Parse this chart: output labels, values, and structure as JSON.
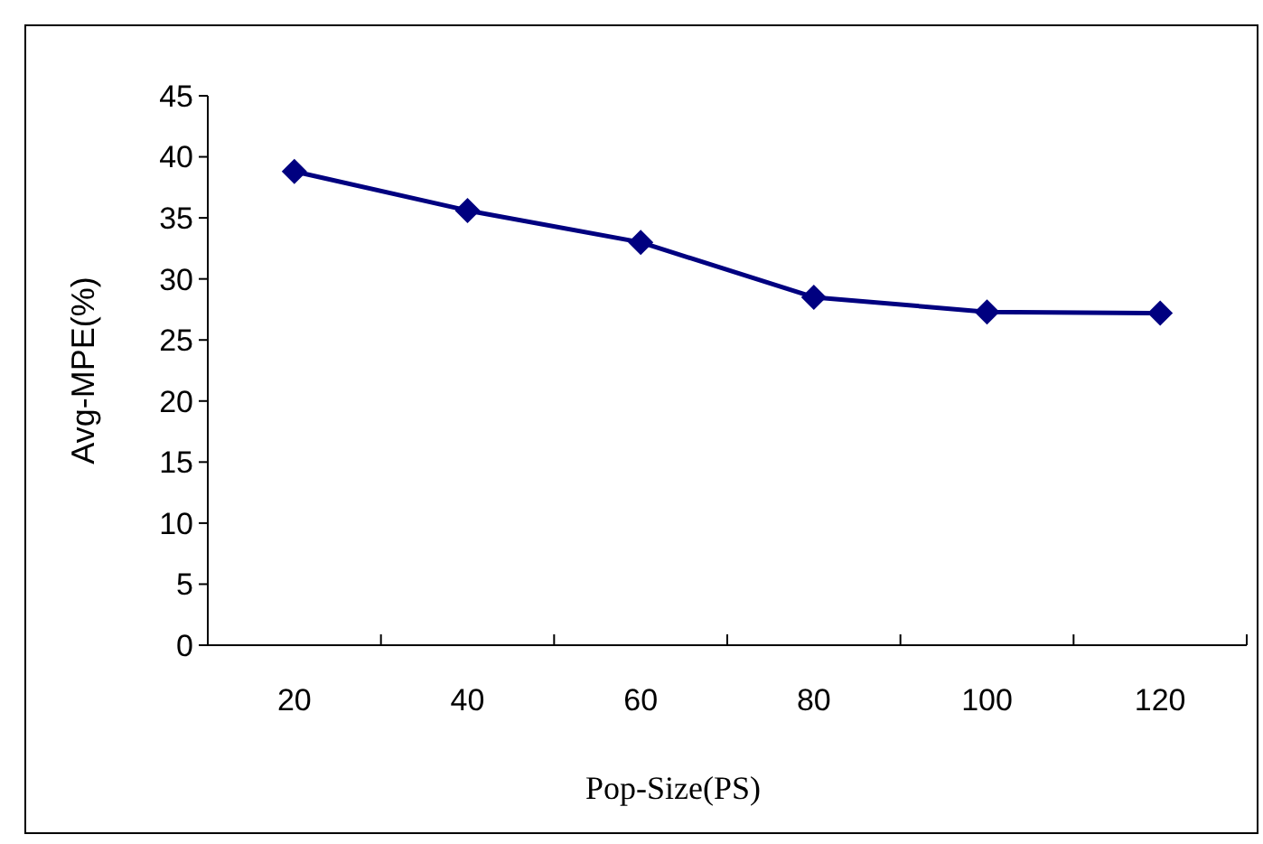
{
  "chart_data": {
    "type": "line",
    "xlabel": "Pop-Size(PS)",
    "ylabel": "Avg-MPE(%)",
    "categories": [
      "20",
      "40",
      "60",
      "80",
      "100",
      "120"
    ],
    "series": [
      {
        "color": "#000080",
        "values": [
          38.8,
          35.6,
          33.0,
          28.5,
          27.3,
          27.2
        ]
      }
    ],
    "ylim": [
      0,
      45
    ],
    "yticks": [
      0,
      5,
      10,
      15,
      20,
      25,
      30,
      35,
      40,
      45
    ],
    "grid": false,
    "marker": "diamond",
    "line_style": "solid"
  }
}
